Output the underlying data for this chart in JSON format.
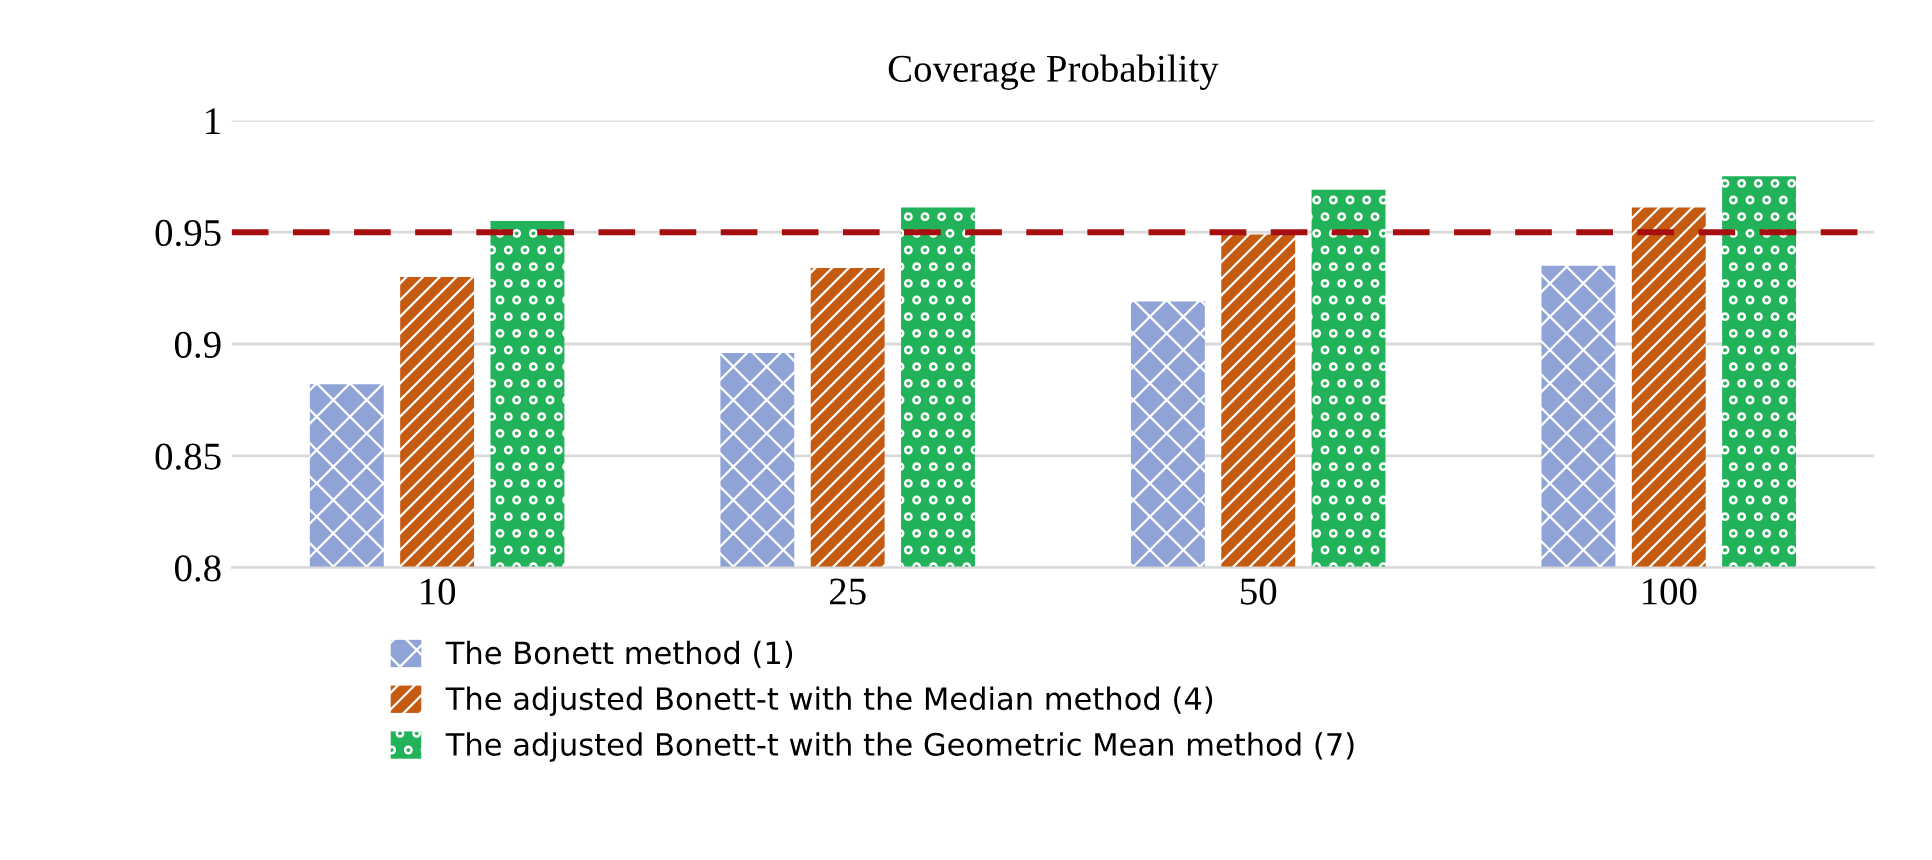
{
  "chart_data": {
    "type": "bar",
    "title": "Coverage Probability",
    "categories": [
      "10",
      "25",
      "50",
      "100"
    ],
    "series": [
      {
        "name": "The Bonett method (1)",
        "color": "#8fa3d6",
        "values": [
          0.882,
          0.896,
          0.919,
          0.935
        ]
      },
      {
        "name": "The adjusted Bonett-t with the Median method (4)",
        "color": "#c55a11",
        "values": [
          0.93,
          0.934,
          0.949,
          0.961
        ]
      },
      {
        "name": "The adjusted Bonett-t with the Geometric Mean method (7)",
        "color": "#22b35a",
        "values": [
          0.955,
          0.961,
          0.969,
          0.975
        ]
      }
    ],
    "ylim": [
      0.8,
      1
    ],
    "yticks": [
      0.8,
      0.85,
      0.9,
      0.95,
      1
    ],
    "grid": "y",
    "legend": "bottom",
    "ref_lines": [
      {
        "axis": "y",
        "value": 0.95,
        "color": "#a50f0f",
        "line_style": "dashed"
      }
    ]
  }
}
